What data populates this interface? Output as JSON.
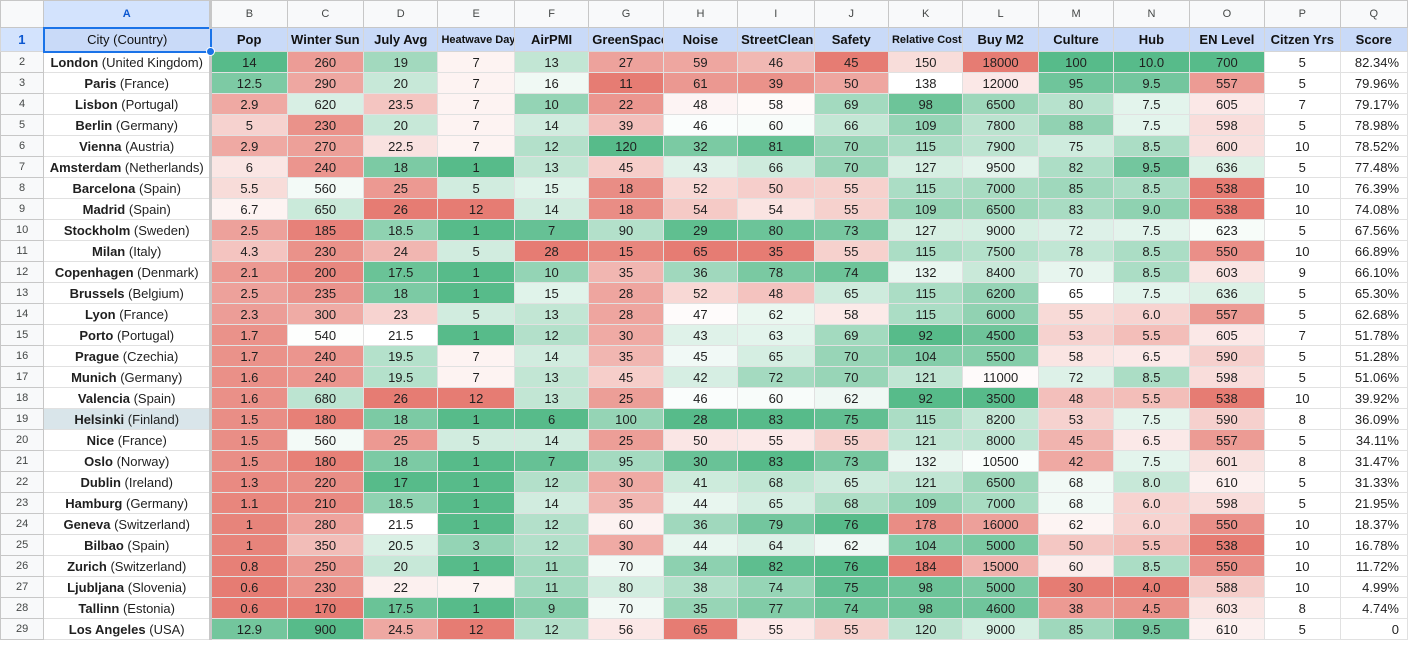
{
  "sheet": {
    "column_letters": [
      "A",
      "B",
      "C",
      "D",
      "E",
      "F",
      "G",
      "H",
      "I",
      "J",
      "K",
      "L",
      "M",
      "N",
      "O",
      "P",
      "Q"
    ],
    "selected_column": "A",
    "selected_cell": "A1",
    "highlighted_row": 19,
    "header_row_number": "1",
    "headers": [
      "City (Country)",
      "Pop",
      "Winter Sun",
      "July Avg",
      "Heatwave Days",
      "AirPMI",
      "GreenSpace",
      "Noise",
      "StreetClean",
      "Safety",
      "Relative Cost",
      "Buy M2",
      "Culture",
      "Hub",
      "EN Level",
      "Citzen Yrs",
      "Score"
    ],
    "colors": {
      "header_fill": "#c9daf8",
      "selection": "#1a73e8",
      "scale_good": "#57bb8a",
      "scale_mid": "#ffffff",
      "scale_bad": "#e67c73"
    },
    "rows": [
      {
        "n": "2",
        "city": "London",
        "country": "(United Kingdom)",
        "vals": [
          "14",
          "260",
          "19",
          "7",
          "13",
          "27",
          "59",
          "46",
          "45",
          "150",
          "18000",
          "100",
          "10.0",
          "700",
          "5",
          "82.34%"
        ]
      },
      {
        "n": "3",
        "city": "Paris",
        "country": "(France)",
        "vals": [
          "12.5",
          "290",
          "20",
          "7",
          "16",
          "11",
          "61",
          "39",
          "50",
          "138",
          "12000",
          "95",
          "9.5",
          "557",
          "5",
          "79.96%"
        ]
      },
      {
        "n": "4",
        "city": "Lisbon",
        "country": "(Portugal)",
        "vals": [
          "2.9",
          "620",
          "23.5",
          "7",
          "10",
          "22",
          "48",
          "58",
          "69",
          "98",
          "6500",
          "80",
          "7.5",
          "605",
          "7",
          "79.17%"
        ]
      },
      {
        "n": "5",
        "city": "Berlin",
        "country": "(Germany)",
        "vals": [
          "5",
          "230",
          "20",
          "7",
          "14",
          "39",
          "46",
          "60",
          "66",
          "109",
          "7800",
          "88",
          "7.5",
          "598",
          "5",
          "78.98%"
        ]
      },
      {
        "n": "6",
        "city": "Vienna",
        "country": "(Austria)",
        "vals": [
          "2.9",
          "270",
          "22.5",
          "7",
          "12",
          "120",
          "32",
          "81",
          "70",
          "115",
          "7900",
          "75",
          "8.5",
          "600",
          "10",
          "78.52%"
        ]
      },
      {
        "n": "7",
        "city": "Amsterdam",
        "country": "(Netherlands)",
        "vals": [
          "6",
          "240",
          "18",
          "1",
          "13",
          "45",
          "43",
          "66",
          "70",
          "127",
          "9500",
          "82",
          "9.5",
          "636",
          "5",
          "77.48%"
        ]
      },
      {
        "n": "8",
        "city": "Barcelona",
        "country": "(Spain)",
        "vals": [
          "5.5",
          "560",
          "25",
          "5",
          "15",
          "18",
          "52",
          "50",
          "55",
          "115",
          "7000",
          "85",
          "8.5",
          "538",
          "10",
          "76.39%"
        ]
      },
      {
        "n": "9",
        "city": "Madrid",
        "country": "(Spain)",
        "vals": [
          "6.7",
          "650",
          "26",
          "12",
          "14",
          "18",
          "54",
          "54",
          "55",
          "109",
          "6500",
          "83",
          "9.0",
          "538",
          "10",
          "74.08%"
        ]
      },
      {
        "n": "10",
        "city": "Stockholm",
        "country": "(Sweden)",
        "vals": [
          "2.5",
          "185",
          "18.5",
          "1",
          "7",
          "90",
          "29",
          "80",
          "73",
          "127",
          "9000",
          "72",
          "7.5",
          "623",
          "5",
          "67.56%"
        ]
      },
      {
        "n": "11",
        "city": "Milan",
        "country": "(Italy)",
        "vals": [
          "4.3",
          "230",
          "24",
          "5",
          "28",
          "15",
          "65",
          "35",
          "55",
          "115",
          "7500",
          "78",
          "8.5",
          "550",
          "10",
          "66.89%"
        ]
      },
      {
        "n": "12",
        "city": "Copenhagen",
        "country": "(Denmark)",
        "vals": [
          "2.1",
          "200",
          "17.5",
          "1",
          "10",
          "35",
          "36",
          "78",
          "74",
          "132",
          "8400",
          "70",
          "8.5",
          "603",
          "9",
          "66.10%"
        ]
      },
      {
        "n": "13",
        "city": "Brussels",
        "country": "(Belgium)",
        "vals": [
          "2.5",
          "235",
          "18",
          "1",
          "15",
          "28",
          "52",
          "48",
          "65",
          "115",
          "6200",
          "65",
          "7.5",
          "636",
          "5",
          "65.30%"
        ]
      },
      {
        "n": "14",
        "city": "Lyon",
        "country": "(France)",
        "vals": [
          "2.3",
          "300",
          "23",
          "5",
          "13",
          "28",
          "47",
          "62",
          "58",
          "115",
          "6000",
          "55",
          "6.0",
          "557",
          "5",
          "62.68%"
        ]
      },
      {
        "n": "15",
        "city": "Porto",
        "country": "(Portugal)",
        "vals": [
          "1.7",
          "540",
          "21.5",
          "1",
          "12",
          "30",
          "43",
          "63",
          "69",
          "92",
          "4500",
          "53",
          "5.5",
          "605",
          "7",
          "51.78%"
        ]
      },
      {
        "n": "16",
        "city": "Prague",
        "country": "(Czechia)",
        "vals": [
          "1.7",
          "240",
          "19.5",
          "7",
          "14",
          "35",
          "45",
          "65",
          "70",
          "104",
          "5500",
          "58",
          "6.5",
          "590",
          "5",
          "51.28%"
        ]
      },
      {
        "n": "17",
        "city": "Munich",
        "country": "(Germany)",
        "vals": [
          "1.6",
          "240",
          "19.5",
          "7",
          "13",
          "45",
          "42",
          "72",
          "70",
          "121",
          "11000",
          "72",
          "8.5",
          "598",
          "5",
          "51.06%"
        ]
      },
      {
        "n": "18",
        "city": "Valencia",
        "country": "(Spain)",
        "vals": [
          "1.6",
          "680",
          "26",
          "12",
          "13",
          "25",
          "46",
          "60",
          "62",
          "92",
          "3500",
          "48",
          "5.5",
          "538",
          "10",
          "39.92%"
        ]
      },
      {
        "n": "19",
        "city": "Helsinki",
        "country": "(Finland)",
        "vals": [
          "1.5",
          "180",
          "18",
          "1",
          "6",
          "100",
          "28",
          "83",
          "75",
          "115",
          "8200",
          "53",
          "7.5",
          "590",
          "8",
          "36.09%"
        ]
      },
      {
        "n": "20",
        "city": "Nice",
        "country": "(France)",
        "vals": [
          "1.5",
          "560",
          "25",
          "5",
          "14",
          "25",
          "50",
          "55",
          "55",
          "121",
          "8000",
          "45",
          "6.5",
          "557",
          "5",
          "34.11%"
        ]
      },
      {
        "n": "21",
        "city": "Oslo",
        "country": "(Norway)",
        "vals": [
          "1.5",
          "180",
          "18",
          "1",
          "7",
          "95",
          "30",
          "83",
          "73",
          "132",
          "10500",
          "42",
          "7.5",
          "601",
          "8",
          "31.47%"
        ]
      },
      {
        "n": "22",
        "city": "Dublin",
        "country": "(Ireland)",
        "vals": [
          "1.3",
          "220",
          "17",
          "1",
          "12",
          "30",
          "41",
          "68",
          "65",
          "121",
          "6500",
          "68",
          "8.0",
          "610",
          "5",
          "31.33%"
        ]
      },
      {
        "n": "23",
        "city": "Hamburg",
        "country": "(Germany)",
        "vals": [
          "1.1",
          "210",
          "18.5",
          "1",
          "14",
          "35",
          "44",
          "65",
          "68",
          "109",
          "7000",
          "68",
          "6.0",
          "598",
          "5",
          "21.95%"
        ]
      },
      {
        "n": "24",
        "city": "Geneva",
        "country": "(Switzerland)",
        "vals": [
          "1",
          "280",
          "21.5",
          "1",
          "12",
          "60",
          "36",
          "79",
          "76",
          "178",
          "16000",
          "62",
          "6.0",
          "550",
          "10",
          "18.37%"
        ]
      },
      {
        "n": "25",
        "city": "Bilbao",
        "country": "(Spain)",
        "vals": [
          "1",
          "350",
          "20.5",
          "3",
          "12",
          "30",
          "44",
          "64",
          "62",
          "104",
          "5000",
          "50",
          "5.5",
          "538",
          "10",
          "16.78%"
        ]
      },
      {
        "n": "26",
        "city": "Zurich",
        "country": "(Switzerland)",
        "vals": [
          "0.8",
          "250",
          "20",
          "1",
          "11",
          "70",
          "34",
          "82",
          "76",
          "184",
          "15000",
          "60",
          "8.5",
          "550",
          "10",
          "11.72%"
        ]
      },
      {
        "n": "27",
        "city": "Ljubljana",
        "country": "(Slovenia)",
        "vals": [
          "0.6",
          "230",
          "22",
          "7",
          "11",
          "80",
          "38",
          "74",
          "75",
          "98",
          "5000",
          "30",
          "4.0",
          "588",
          "10",
          "4.99%"
        ]
      },
      {
        "n": "28",
        "city": "Tallinn",
        "country": "(Estonia)",
        "vals": [
          "0.6",
          "170",
          "17.5",
          "1",
          "9",
          "70",
          "35",
          "77",
          "74",
          "98",
          "4600",
          "38",
          "4.5",
          "603",
          "8",
          "4.74%"
        ]
      },
      {
        "n": "29",
        "city": "Los Angeles",
        "country": "(USA)",
        "vals": [
          "12.9",
          "900",
          "24.5",
          "12",
          "12",
          "56",
          "65",
          "55",
          "55",
          "120",
          "9000",
          "85",
          "9.5",
          "610",
          "5",
          "0"
        ]
      }
    ]
  }
}
